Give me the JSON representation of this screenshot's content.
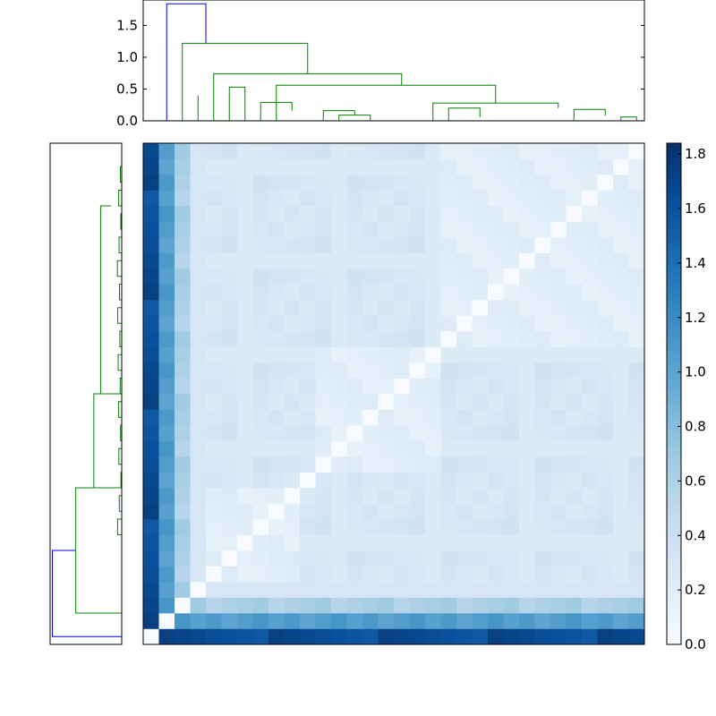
{
  "chart_data": [
    {
      "type": "dendrogram",
      "panel": "top",
      "title": "",
      "ylabel": "",
      "ylim": [
        0,
        1.9
      ],
      "yticks": [
        "0.0",
        "0.5",
        "1.0",
        "1.5"
      ],
      "leaf_count": 32,
      "links": [
        {
          "x": [
            1.5,
            1.5,
            4.0,
            4.0
          ],
          "y": [
            0.0,
            1.84,
            1.84,
            1.22
          ],
          "color": "#0000ff"
        },
        {
          "x": [
            2.5,
            2.5,
            10.5,
            10.5
          ],
          "y": [
            0.0,
            1.22,
            1.22,
            0.74
          ],
          "color": "#008000"
        },
        {
          "x": [
            4.5,
            4.5,
            16.5,
            16.5
          ],
          "y": [
            0.0,
            0.74,
            0.74,
            0.56
          ],
          "color": "#008000"
        },
        {
          "x": [
            8.5,
            8.5,
            22.5,
            22.5
          ],
          "y": [
            0.0,
            0.56,
            0.56,
            0.28
          ],
          "color": "#008000"
        },
        {
          "x": [
            3.5,
            3.5,
            3.5,
            3.5
          ],
          "y": [
            0.0,
            0.4,
            0.4,
            0.0
          ],
          "color": "#008000"
        },
        {
          "x": [
            5.5,
            5.5,
            6.5,
            6.5
          ],
          "y": [
            0.0,
            0.53,
            0.53,
            0.0
          ],
          "color": "#008000"
        },
        {
          "x": [
            7.5,
            7.5,
            9.5,
            9.5
          ],
          "y": [
            0.0,
            0.29,
            0.29,
            0.16
          ],
          "color": "#008000"
        },
        {
          "x": [
            11.5,
            11.5,
            13.5,
            13.5
          ],
          "y": [
            0.0,
            0.16,
            0.16,
            0.09
          ],
          "color": "#008000"
        },
        {
          "x": [
            12.5,
            12.5,
            14.5,
            14.5
          ],
          "y": [
            0.0,
            0.09,
            0.09,
            0.0
          ],
          "color": "#008000"
        },
        {
          "x": [
            18.5,
            18.5,
            26.5,
            26.5
          ],
          "y": [
            0.0,
            0.28,
            0.28,
            0.2
          ],
          "color": "#008000"
        },
        {
          "x": [
            19.5,
            19.5,
            21.5,
            21.5
          ],
          "y": [
            0.0,
            0.2,
            0.2,
            0.06
          ],
          "color": "#008000"
        },
        {
          "x": [
            27.5,
            27.5,
            29.5,
            29.5
          ],
          "y": [
            0.0,
            0.18,
            0.18,
            0.08
          ],
          "color": "#008000"
        },
        {
          "x": [
            30.5,
            30.5,
            31.5,
            31.5
          ],
          "y": [
            0.0,
            0.06,
            0.06,
            0.0
          ],
          "color": "#008000"
        }
      ]
    },
    {
      "type": "dendrogram",
      "panel": "left",
      "title": "",
      "orientation": "left",
      "leaf_count": 32,
      "links": [
        {
          "y": [
            0.5,
            0.5,
            6.0,
            6.0
          ],
          "x": [
            0.0,
            1.84,
            1.84,
            1.22
          ],
          "color": "#0000ff"
        },
        {
          "y": [
            2.0,
            2.0,
            10.0,
            10.0
          ],
          "x": [
            0.0,
            1.22,
            1.22,
            0.4
          ],
          "color": "#008000"
        },
        {
          "y": [
            10.0,
            10.0,
            16.0,
            16.0
          ],
          "x": [
            0.0,
            0.74,
            0.74,
            0.56
          ],
          "color": "#008000"
        },
        {
          "y": [
            16.0,
            16.0,
            28.0,
            28.0
          ],
          "x": [
            0.0,
            0.56,
            0.56,
            0.28
          ],
          "color": "#008000"
        }
      ]
    },
    {
      "type": "heatmap",
      "panel": "main",
      "title": "",
      "xlabel": "",
      "ylabel": "",
      "rows": 32,
      "cols": 32,
      "colormap": "Blues",
      "colormap_stops": [
        "#f7fbff",
        "#deebf7",
        "#c6dbef",
        "#9ecae1",
        "#6baed6",
        "#4292c6",
        "#2171b5",
        "#08519c",
        "#08306b"
      ],
      "vmin": 0.0,
      "vmax": 1.84,
      "colorbar": {
        "ticks": [
          "0.0",
          "0.2",
          "0.4",
          "0.6",
          "0.8",
          "1.0",
          "1.2",
          "1.4",
          "1.6",
          "1.8"
        ],
        "tick_values": [
          0.0,
          0.2,
          0.4,
          0.6,
          0.8,
          1.0,
          1.2,
          1.4,
          1.6,
          1.8
        ]
      },
      "matrix_summary": {
        "block_low_within": 0.15,
        "block_mid": 0.4,
        "strip_row_0": 1.55,
        "strip_row_1": 1.0,
        "strip_row_2": 0.55
      }
    }
  ]
}
